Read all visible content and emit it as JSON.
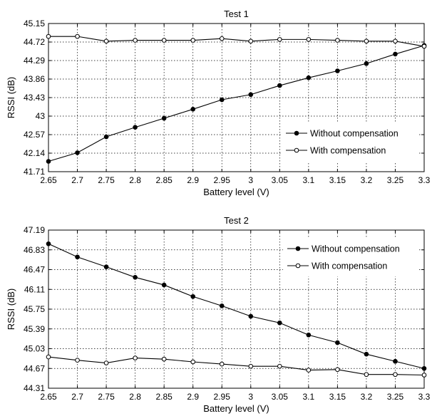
{
  "chart_data": [
    {
      "type": "line",
      "title": "Test 1",
      "xlabel": "Battery level (V)",
      "ylabel": "RSSI (dB)",
      "xlim": [
        2.65,
        3.3
      ],
      "ylim": [
        41.71,
        45.15
      ],
      "xticks": [
        "2.65",
        "2.7",
        "2.75",
        "2.8",
        "2.85",
        "2.9",
        "2.95",
        "3",
        "3.05",
        "3.1",
        "3.15",
        "3.2",
        "3.25",
        "3.3"
      ],
      "yticks": [
        "41.71",
        "42.14",
        "42.57",
        "43",
        "43.43",
        "43.86",
        "44.29",
        "44.72",
        "45.15"
      ],
      "grid": true,
      "legend_position": "bottom-right",
      "x": [
        2.65,
        2.7,
        2.75,
        2.8,
        2.85,
        2.9,
        2.95,
        3.0,
        3.05,
        3.1,
        3.15,
        3.2,
        3.25,
        3.3
      ],
      "series": [
        {
          "name": "Without compensation",
          "marker": "filled-circle",
          "values": [
            41.95,
            42.15,
            42.52,
            42.74,
            42.95,
            43.16,
            43.38,
            43.5,
            43.71,
            43.89,
            44.05,
            44.22,
            44.44,
            44.64
          ]
        },
        {
          "name": "With compensation",
          "marker": "open-circle",
          "values": [
            44.85,
            44.85,
            44.74,
            44.76,
            44.76,
            44.76,
            44.8,
            44.74,
            44.78,
            44.78,
            44.76,
            44.74,
            44.74,
            44.62
          ]
        }
      ]
    },
    {
      "type": "line",
      "title": "Test 2",
      "xlabel": "Battery level (V)",
      "ylabel": "RSSI (dB)",
      "xlim": [
        2.65,
        3.3
      ],
      "ylim": [
        44.31,
        47.19
      ],
      "xticks": [
        "2.65",
        "2.7",
        "2.75",
        "2.8",
        "2.85",
        "2.9",
        "2.95",
        "3",
        "3.05",
        "3.1",
        "3.15",
        "3.2",
        "3.25",
        "3.3"
      ],
      "yticks": [
        "44.31",
        "44.67",
        "45.03",
        "45.39",
        "45.75",
        "46.11",
        "46.47",
        "46.83",
        "47.19"
      ],
      "grid": true,
      "legend_position": "top-right",
      "x": [
        2.65,
        2.7,
        2.75,
        2.8,
        2.85,
        2.9,
        2.95,
        3.0,
        3.05,
        3.1,
        3.15,
        3.2,
        3.25,
        3.3
      ],
      "series": [
        {
          "name": "Without compensation",
          "marker": "filled-circle",
          "values": [
            46.94,
            46.7,
            46.52,
            46.33,
            46.19,
            45.98,
            45.81,
            45.62,
            45.5,
            45.28,
            45.14,
            44.93,
            44.8,
            44.67
          ]
        },
        {
          "name": "With compensation",
          "marker": "open-circle",
          "values": [
            44.88,
            44.82,
            44.77,
            44.86,
            44.84,
            44.79,
            44.75,
            44.71,
            44.71,
            44.64,
            44.65,
            44.56,
            44.56,
            44.55
          ]
        }
      ]
    }
  ]
}
